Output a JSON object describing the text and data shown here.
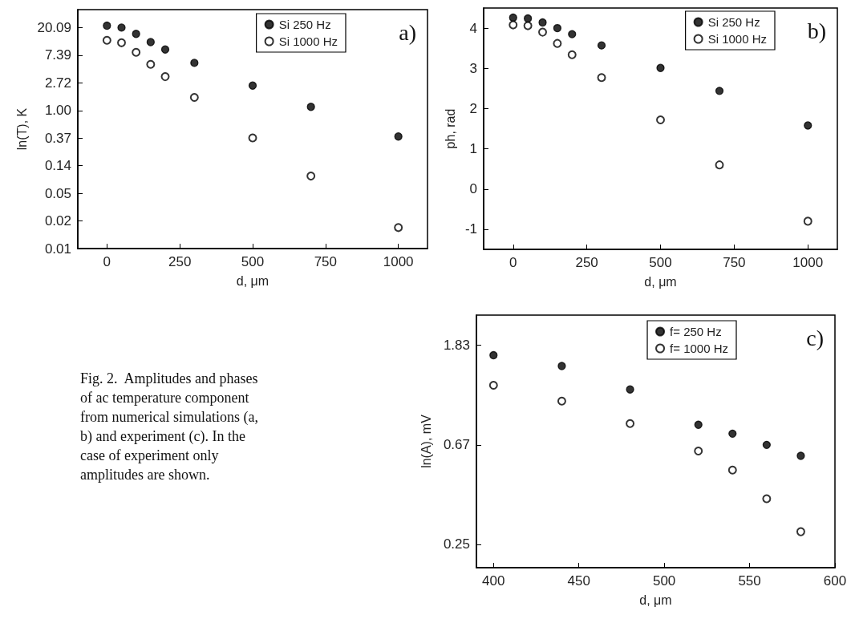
{
  "chart_data": [
    {
      "type": "scatter",
      "title": "a)",
      "xlabel": "d, μm",
      "ylabel": "ln(T), K",
      "log": "y",
      "legend": "top right",
      "marker": "circle",
      "x": [
        0,
        50,
        100,
        150,
        200,
        300,
        500,
        700,
        1000
      ],
      "xlim": [
        -100,
        1100
      ],
      "xticks": [
        0,
        250,
        500,
        750,
        1000
      ],
      "ylim": [
        0.006738,
        38.5
      ],
      "yticks": [
        {
          "value": 20.09,
          "label": "20.09"
        },
        {
          "value": 7.389,
          "label": "7.39"
        },
        {
          "value": 2.718,
          "label": "2.72"
        },
        {
          "value": 1,
          "label": "1.00"
        },
        {
          "value": 0.3679,
          "label": "0.37"
        },
        {
          "value": 0.1353,
          "label": "0.14"
        },
        {
          "value": 0.04979,
          "label": "0.05"
        },
        {
          "value": 0.01832,
          "label": "0.02"
        },
        {
          "value": 0.006738,
          "label": "0.01"
        }
      ],
      "series": [
        {
          "name": "Si 250 Hz",
          "color": "#000000",
          "values": [
            21.5,
            20.1,
            16.0,
            11.9,
            9.1,
            5.6,
            2.46,
            1.14,
            0.39
          ]
        },
        {
          "name": "Si 1000 Hz",
          "color": "#000000",
          "values": [
            12.7,
            11.6,
            8.2,
            5.3,
            3.4,
            1.6,
            0.37,
            0.093,
            0.0144
          ]
        }
      ]
    },
    {
      "type": "scatter",
      "title": "b)",
      "xlabel": "d, μm",
      "ylabel": "ph, rad",
      "legend": "top right",
      "marker": "circle",
      "x": [
        0,
        50,
        100,
        150,
        200,
        300,
        500,
        700,
        1000
      ],
      "xlim": [
        -100,
        1100
      ],
      "xticks": [
        0,
        250,
        500,
        750,
        1000
      ],
      "ylim": [
        -1.5,
        4.5
      ],
      "yticks": [
        -1,
        0,
        1,
        2,
        3,
        4
      ],
      "series": [
        {
          "name": "Si 250 Hz",
          "color": "#000000",
          "values": [
            4.26,
            4.24,
            4.14,
            4.0,
            3.85,
            3.57,
            3.01,
            2.44,
            1.58
          ]
        },
        {
          "name": "Si 1000 Hz",
          "color": "#000000",
          "values": [
            4.08,
            4.06,
            3.9,
            3.62,
            3.34,
            2.77,
            1.72,
            0.6,
            -0.8
          ]
        }
      ]
    },
    {
      "type": "scatter",
      "title": "c)",
      "xlabel": "d, μm",
      "ylabel": "ln(A), mV",
      "log": "y",
      "legend": "top right",
      "marker": "circle",
      "x": [
        400,
        440,
        480,
        520,
        540,
        560,
        580
      ],
      "xlim": [
        390,
        600
      ],
      "xticks": [
        400,
        450,
        500,
        550,
        600
      ],
      "ylim": [
        0.195,
        2.47
      ],
      "yticks": [
        {
          "value": 1.83,
          "label": "1.83"
        },
        {
          "value": 0.6703,
          "label": "0.67"
        },
        {
          "value": 0.2466,
          "label": "0.25"
        }
      ],
      "annotations": [
        "Fig. 2.  Amplitudes and phases of ac temperature component from numerical simulations (a, b) and experiment (c). In the case of experiment only amplitudes are shown."
      ],
      "series": [
        {
          "name": "f= 250 Hz",
          "color": "#000000",
          "values": [
            1.65,
            1.48,
            1.17,
            0.82,
            0.75,
            0.67,
            0.6
          ]
        },
        {
          "name": "f= 1000 Hz",
          "color": "#000000",
          "values": [
            1.22,
            1.04,
            0.83,
            0.63,
            0.52,
            0.39,
            0.28
          ]
        }
      ]
    }
  ]
}
